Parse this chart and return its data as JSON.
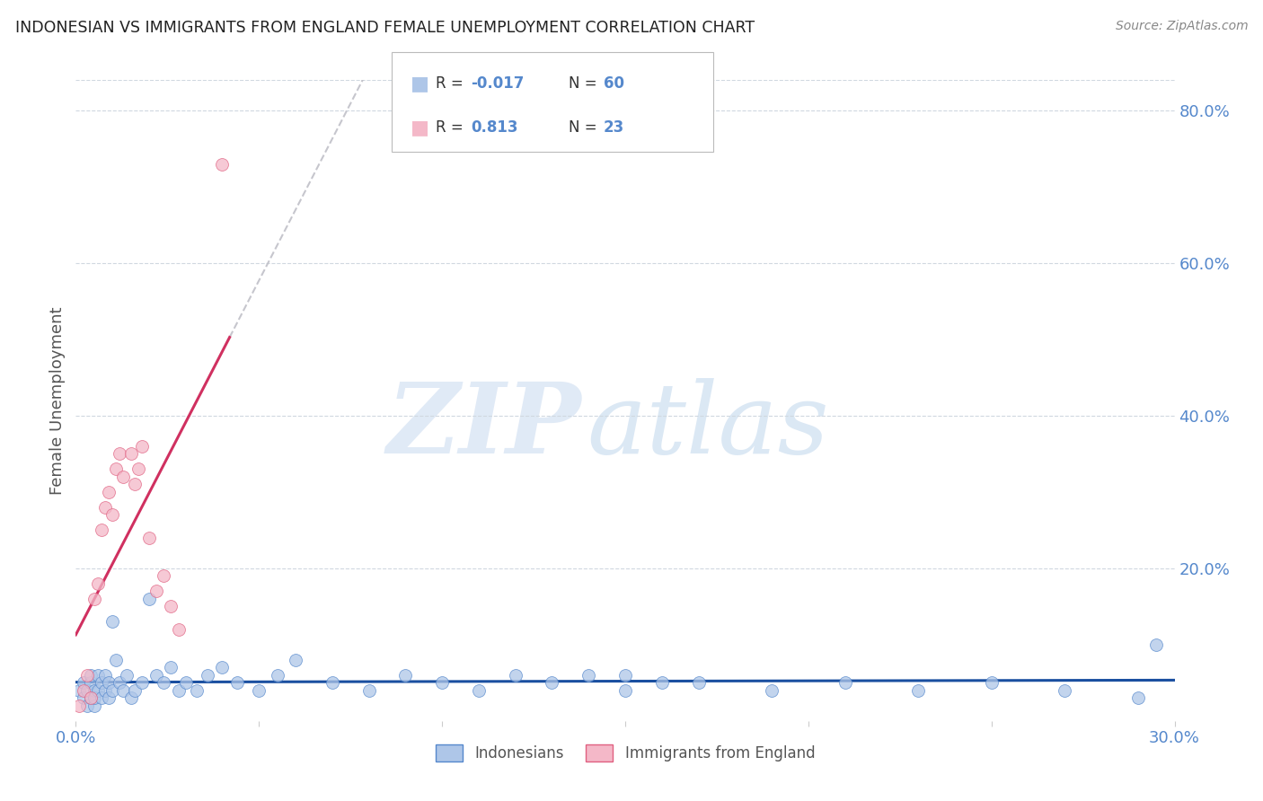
{
  "title": "INDONESIAN VS IMMIGRANTS FROM ENGLAND FEMALE UNEMPLOYMENT CORRELATION CHART",
  "source": "Source: ZipAtlas.com",
  "ylabel": "Female Unemployment",
  "xlim": [
    0.0,
    0.3
  ],
  "ylim": [
    0.0,
    0.84
  ],
  "color_blue_fill": "#aec6e8",
  "color_blue_edge": "#5588cc",
  "color_pink_fill": "#f4b8c8",
  "color_pink_edge": "#e06080",
  "color_trendline_blue": "#1a4fa0",
  "color_trendline_pink": "#d03060",
  "color_trendline_gray": "#c0c0c8",
  "color_grid": "#d0d8e0",
  "color_tick": "#5588cc",
  "color_ylabel": "#555555",
  "color_title": "#222222",
  "color_source": "#888888",
  "color_watermark_zip": "#ccdcf0",
  "color_watermark_atlas": "#b0cce8",
  "indonesians_x": [
    0.001,
    0.002,
    0.002,
    0.003,
    0.003,
    0.004,
    0.004,
    0.004,
    0.005,
    0.005,
    0.005,
    0.006,
    0.006,
    0.007,
    0.007,
    0.008,
    0.008,
    0.009,
    0.009,
    0.01,
    0.01,
    0.011,
    0.012,
    0.013,
    0.014,
    0.015,
    0.016,
    0.018,
    0.02,
    0.022,
    0.024,
    0.026,
    0.028,
    0.03,
    0.033,
    0.036,
    0.04,
    0.044,
    0.05,
    0.055,
    0.06,
    0.07,
    0.08,
    0.09,
    0.1,
    0.11,
    0.13,
    0.15,
    0.17,
    0.19,
    0.21,
    0.23,
    0.25,
    0.27,
    0.15,
    0.16,
    0.14,
    0.12,
    0.29,
    0.295
  ],
  "indonesians_y": [
    0.04,
    0.03,
    0.05,
    0.02,
    0.04,
    0.03,
    0.05,
    0.06,
    0.02,
    0.04,
    0.03,
    0.04,
    0.06,
    0.03,
    0.05,
    0.04,
    0.06,
    0.03,
    0.05,
    0.04,
    0.13,
    0.08,
    0.05,
    0.04,
    0.06,
    0.03,
    0.04,
    0.05,
    0.16,
    0.06,
    0.05,
    0.07,
    0.04,
    0.05,
    0.04,
    0.06,
    0.07,
    0.05,
    0.04,
    0.06,
    0.08,
    0.05,
    0.04,
    0.06,
    0.05,
    0.04,
    0.05,
    0.04,
    0.05,
    0.04,
    0.05,
    0.04,
    0.05,
    0.04,
    0.06,
    0.05,
    0.06,
    0.06,
    0.03,
    0.1
  ],
  "england_x": [
    0.001,
    0.002,
    0.003,
    0.004,
    0.005,
    0.006,
    0.007,
    0.008,
    0.009,
    0.01,
    0.011,
    0.012,
    0.013,
    0.015,
    0.016,
    0.017,
    0.018,
    0.02,
    0.022,
    0.024,
    0.026,
    0.028,
    0.04
  ],
  "england_y": [
    0.02,
    0.04,
    0.06,
    0.03,
    0.16,
    0.18,
    0.25,
    0.28,
    0.3,
    0.27,
    0.33,
    0.35,
    0.32,
    0.35,
    0.31,
    0.33,
    0.36,
    0.24,
    0.17,
    0.19,
    0.15,
    0.12,
    0.73
  ]
}
